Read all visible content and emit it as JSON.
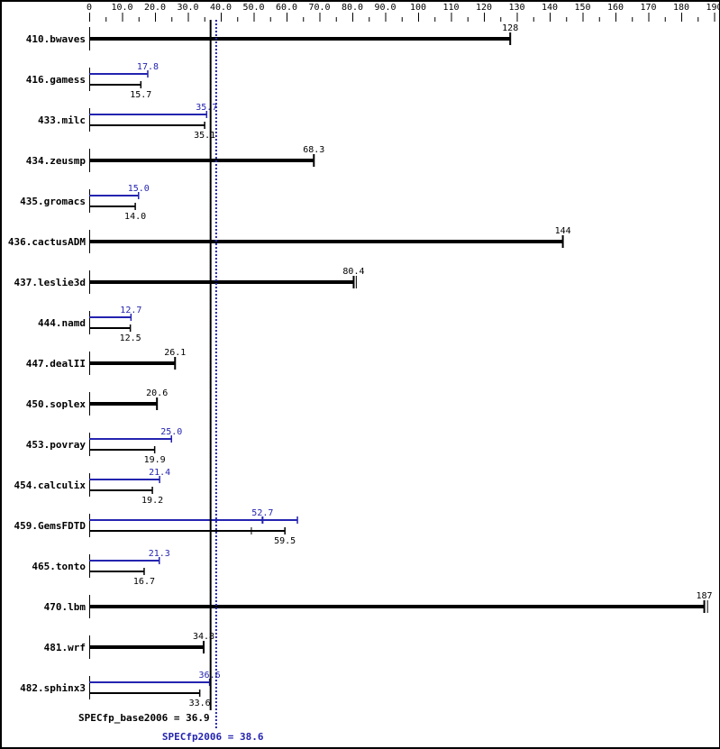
{
  "chart_data": {
    "type": "bar",
    "orientation": "horizontal",
    "xlim": [
      0,
      190
    ],
    "x_ticks": [
      "0",
      "10.0",
      "20.0",
      "30.0",
      "40.0",
      "50.0",
      "60.0",
      "70.0",
      "80.0",
      "90.0",
      "100",
      "110",
      "120",
      "130",
      "140",
      "150",
      "160",
      "170",
      "180",
      "190"
    ],
    "colors": {
      "base": "#000000",
      "peak": "#2424b0"
    },
    "benchmarks": [
      {
        "name": "410.bwaves",
        "base": 128,
        "base_label": "128"
      },
      {
        "name": "416.gamess",
        "base": 15.7,
        "base_label": "15.7",
        "peak": 17.8,
        "peak_label": "17.8"
      },
      {
        "name": "433.milc",
        "base": 35.1,
        "base_label": "35.1",
        "peak": 35.7,
        "peak_label": "35.7"
      },
      {
        "name": "434.zeusmp",
        "base": 68.3,
        "base_label": "68.3"
      },
      {
        "name": "435.gromacs",
        "base": 14.0,
        "base_label": "14.0",
        "peak": 15.0,
        "peak_label": "15.0"
      },
      {
        "name": "436.cactusADM",
        "base": 144,
        "base_label": "144"
      },
      {
        "name": "437.leslie3d",
        "base": 80.4,
        "base_label": "80.4",
        "base_max": 81.2
      },
      {
        "name": "444.namd",
        "base": 12.5,
        "base_label": "12.5",
        "peak": 12.7,
        "peak_label": "12.7"
      },
      {
        "name": "447.dealII",
        "base": 26.1,
        "base_label": "26.1"
      },
      {
        "name": "450.soplex",
        "base": 20.6,
        "base_label": "20.6"
      },
      {
        "name": "453.povray",
        "base": 19.9,
        "base_label": "19.9",
        "peak": 25.0,
        "peak_label": "25.0"
      },
      {
        "name": "454.calculix",
        "base": 19.2,
        "base_label": "19.2",
        "peak": 21.4,
        "peak_label": "21.4"
      },
      {
        "name": "459.GemsFDTD",
        "base": 59.5,
        "base_label": "59.5",
        "base_median": 49.3,
        "peak": 52.7,
        "peak_label": "52.7",
        "peak_max": 63.3
      },
      {
        "name": "465.tonto",
        "base": 16.7,
        "base_label": "16.7",
        "peak": 21.3,
        "peak_label": "21.3"
      },
      {
        "name": "470.lbm",
        "base": 187,
        "base_label": "187",
        "base_max": 188
      },
      {
        "name": "481.wrf",
        "base": 34.8,
        "base_label": "34.8"
      },
      {
        "name": "482.sphinx3",
        "base": 33.6,
        "base_label": "33.6",
        "peak": 36.6,
        "peak_label": "36.6"
      }
    ],
    "reference_lines": [
      {
        "label": "SPECfp_base2006 = 36.9",
        "value": 36.9,
        "style": "solid",
        "color": "#000000"
      },
      {
        "label": "SPECfp2006 = 38.6",
        "value": 38.6,
        "style": "dotted",
        "color": "#2424b0"
      }
    ]
  }
}
